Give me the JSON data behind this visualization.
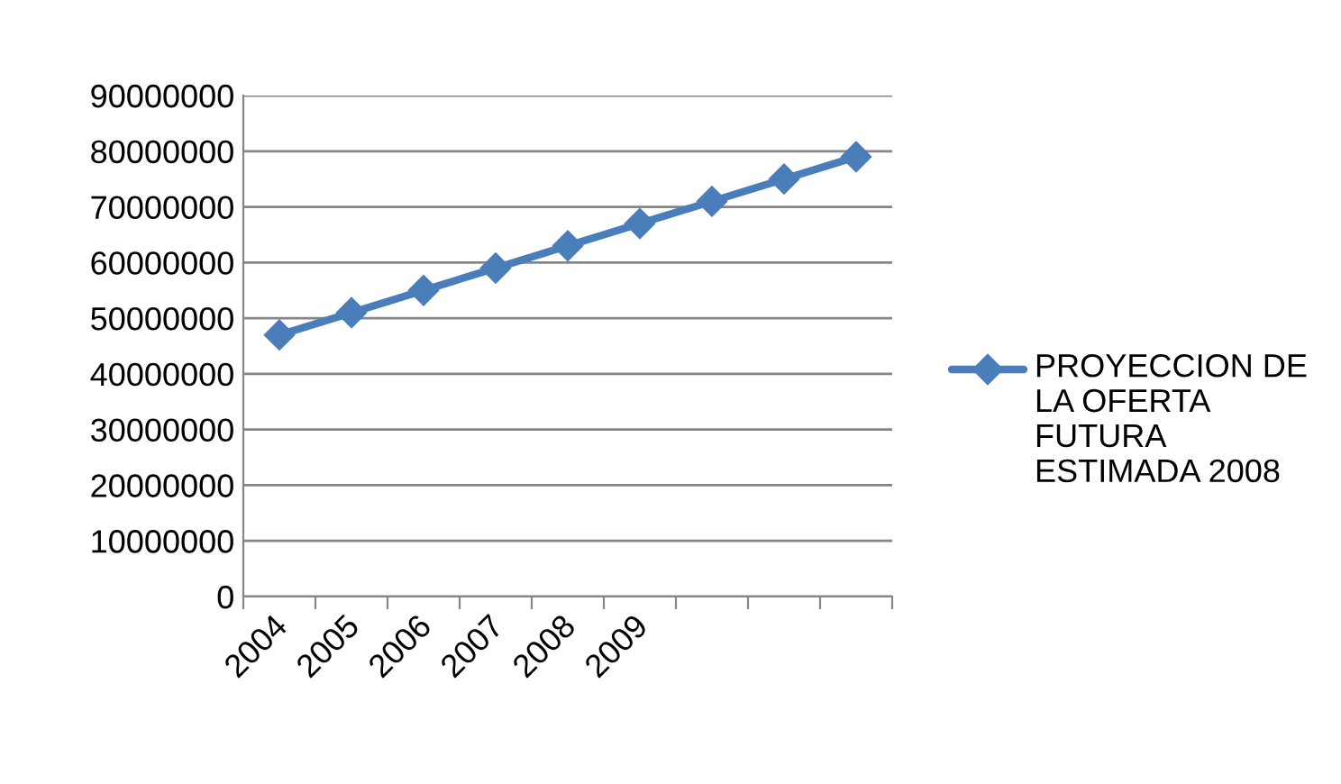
{
  "chart_data": {
    "type": "line",
    "categories": [
      "2004",
      "2005",
      "2006",
      "2007",
      "2008",
      "2009",
      null,
      null,
      null
    ],
    "series": [
      {
        "name": "PROYECCION DE LA OFERTA  FUTURA ESTIMADA 2008",
        "color": "#4a7ebb",
        "values": [
          47000000,
          51000000,
          55000000,
          59000000,
          63000000,
          67000000,
          71000000,
          75000000,
          79000000
        ]
      }
    ],
    "ylim": [
      0,
      90000000
    ],
    "yticks": [
      0,
      10000000,
      20000000,
      30000000,
      40000000,
      50000000,
      60000000,
      70000000,
      80000000,
      90000000
    ],
    "grid": "y",
    "legend": "right",
    "marker": "diamond",
    "line_style": "solid"
  }
}
